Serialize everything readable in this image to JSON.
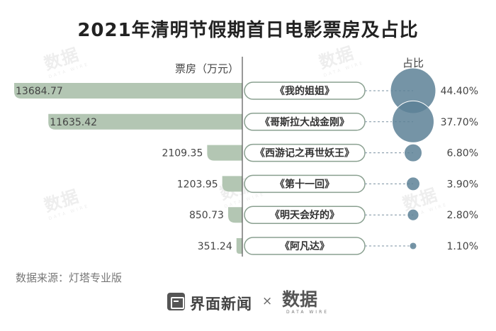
{
  "chart_data": {
    "type": "bar",
    "title": "2021年清明节假期首日电影票房及占比",
    "value_axis_label": "票房（万元）",
    "share_axis_label": "占比",
    "categories": [
      "《我的姐姐》",
      "《哥斯拉大战金刚》",
      "《西游记之再世妖王》",
      "《第十一回》",
      "《明天会好的》",
      "《阿凡达》"
    ],
    "series": [
      {
        "name": "票房（万元）",
        "values": [
          13684.77,
          11635.42,
          2109.35,
          1203.95,
          850.73,
          351.24
        ]
      },
      {
        "name": "占比",
        "values": [
          44.4,
          37.7,
          6.8,
          3.9,
          2.8,
          1.1
        ]
      }
    ],
    "value_labels": [
      "13684.77",
      "11635.42",
      "2109.35",
      "1203.95",
      "850.73",
      "351.24"
    ],
    "share_labels": [
      "44.40%",
      "37.70%",
      "6.80%",
      "3.90%",
      "2.80%",
      "1.10%"
    ],
    "source": "数据来源：灯塔专业版"
  },
  "footer": {
    "brand": "界面新闻",
    "separator": "×",
    "partner": "数据",
    "partner_sub": "DATA WIRE"
  },
  "watermark": {
    "text": "数据",
    "sub": "DATA WIRE"
  },
  "colors": {
    "bar": "#b3c6b3",
    "bubble": "#5d8196",
    "pill_border": "#8aa090",
    "axis": "#555555",
    "dash": "#7a90a0"
  }
}
